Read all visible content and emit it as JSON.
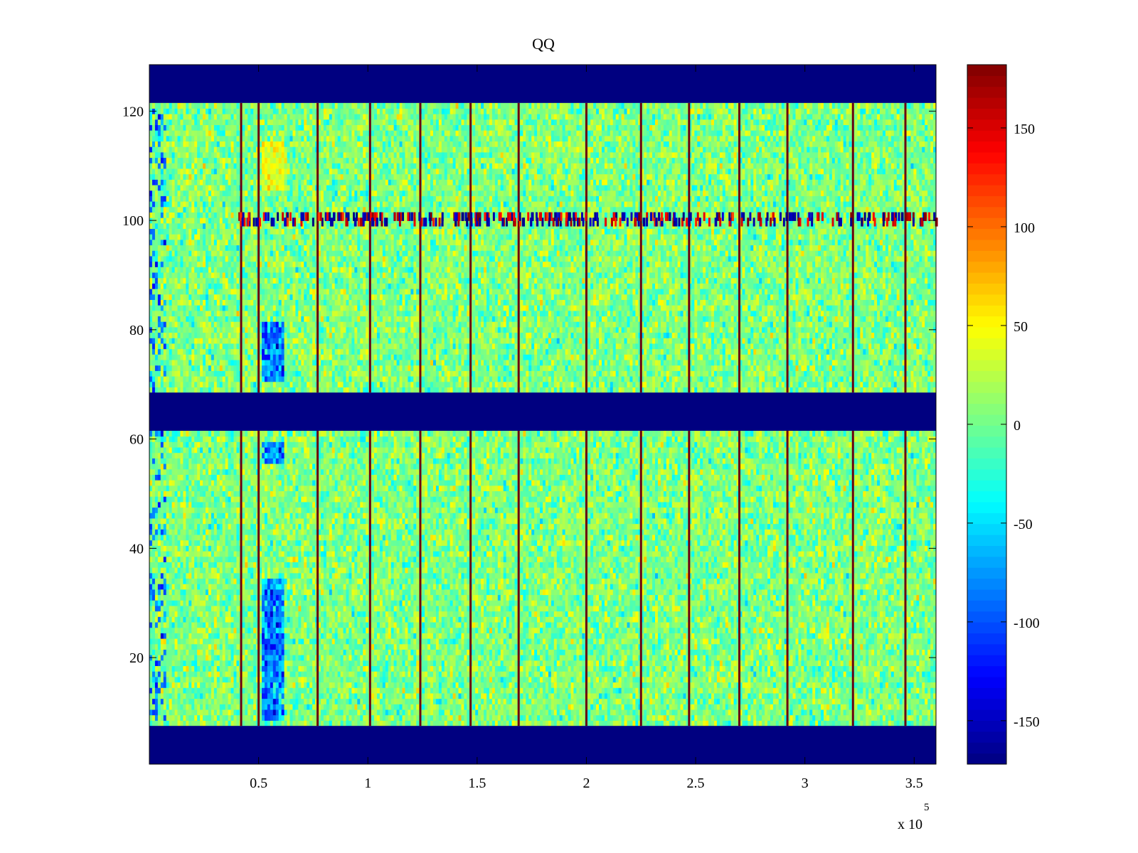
{
  "chart_data": {
    "type": "heatmap",
    "title": "QQ",
    "xlabel": "",
    "ylabel": "",
    "x_multiplier_label": "x 10",
    "x_multiplier_exponent": "5",
    "xlim": [
      0.0,
      3.6
    ],
    "ylim": [
      0.5,
      128.5
    ],
    "x_ticks": [
      0.5,
      1,
      1.5,
      2,
      2.5,
      3,
      3.5
    ],
    "x_tick_labels": [
      "0.5",
      "1",
      "1.5",
      "2",
      "2.5",
      "3",
      "3.5"
    ],
    "y_ticks": [
      20,
      40,
      60,
      80,
      100,
      120
    ],
    "y_tick_labels": [
      "20",
      "40",
      "60",
      "80",
      "100",
      "120"
    ],
    "colormap": "jet",
    "clim": [
      -172,
      182
    ],
    "colorbar": {
      "ticks": [
        -150,
        -100,
        -50,
        0,
        50,
        100,
        150
      ],
      "tick_labels": [
        "-150",
        "-100",
        "-50",
        "0",
        "50",
        "100",
        "150"
      ],
      "placement": "right"
    },
    "empty_row_bands": [
      [
        0.5,
        7.5
      ],
      [
        61.5,
        68.5
      ],
      [
        121.5,
        128.5
      ]
    ],
    "boundary_columns_x": [
      0.42,
      0.5,
      0.77,
      1.01,
      1.24,
      1.47,
      1.69,
      2.0,
      2.25,
      2.47,
      2.7,
      2.92,
      3.22,
      3.46
    ],
    "noisy_row_y": 100,
    "background_value": 5
  }
}
